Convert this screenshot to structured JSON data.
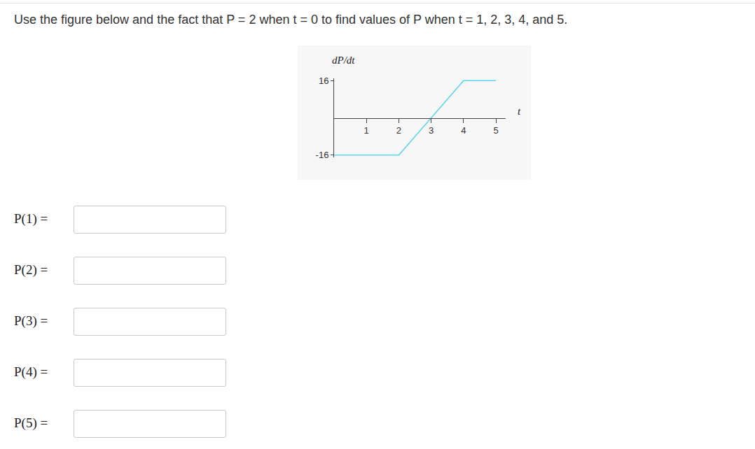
{
  "question": "Use the figure below and the fact that P = 2 when t = 0 to find values of P when t = 1, 2, 3, 4, and 5.",
  "chart_data": {
    "type": "line",
    "x_label": "t",
    "y_label": "dP/dt",
    "x": [
      0,
      2,
      4,
      5
    ],
    "values": [
      -16,
      -16,
      16,
      16
    ],
    "color": "#5bd5ea",
    "xlim": [
      0,
      5.3
    ],
    "ylim": [
      -17,
      17
    ],
    "xticks": [
      1,
      2,
      3,
      4,
      5
    ],
    "yticks": [
      -16,
      16
    ],
    "grid": false
  },
  "answers": [
    "P(1) =",
    "P(2) =",
    "P(3) =",
    "P(4) =",
    "P(5) ="
  ]
}
